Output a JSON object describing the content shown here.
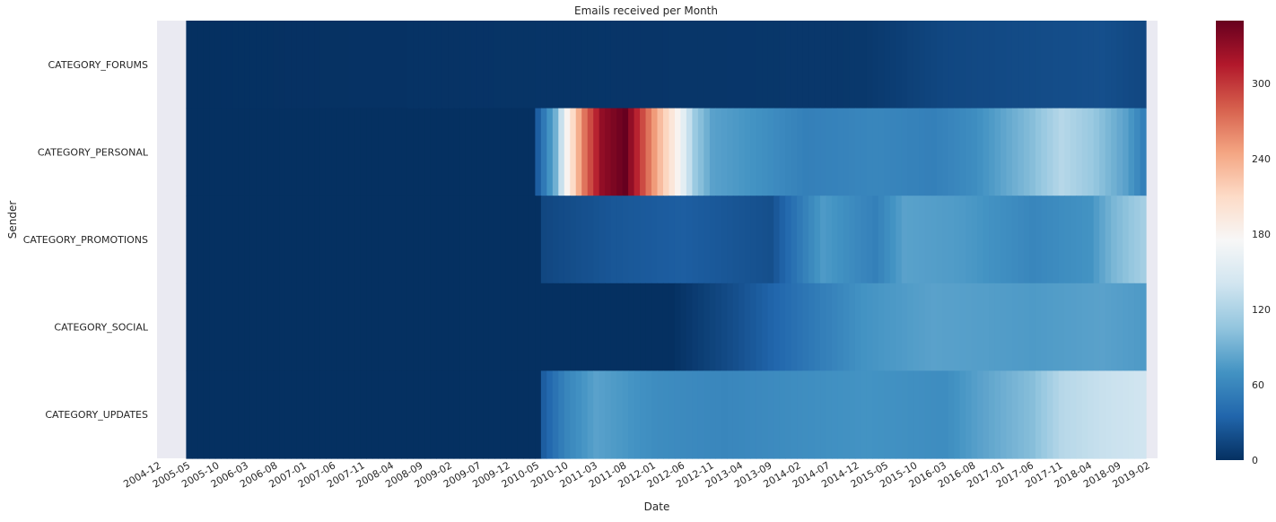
{
  "chart_data": {
    "type": "heatmap",
    "title": "Emails received per Month",
    "xlabel": "Date",
    "ylabel": "Sender",
    "rows": [
      "CATEGORY_FORUMS",
      "CATEGORY_PERSONAL",
      "CATEGORY_PROMOTIONS",
      "CATEGORY_SOCIAL",
      "CATEGORY_UPDATES"
    ],
    "x_tick_labels": [
      "2004-12",
      "2005-05",
      "2005-10",
      "2006-03",
      "2006-08",
      "2007-01",
      "2007-06",
      "2007-11",
      "2008-04",
      "2008-09",
      "2009-02",
      "2009-07",
      "2009-12",
      "2010-05",
      "2010-10",
      "2011-03",
      "2011-08",
      "2012-01",
      "2012-06",
      "2012-11",
      "2013-04",
      "2013-09",
      "2014-02",
      "2014-07",
      "2014-12",
      "2015-05",
      "2015-10",
      "2016-03",
      "2016-08",
      "2017-01",
      "2017-06",
      "2017-11",
      "2018-04",
      "2018-09",
      "2019-02"
    ],
    "x_start": "2004-12",
    "x_end": "2019-02",
    "empty_months_start": [
      "2004-12",
      "2005-01",
      "2005-02",
      "2005-03",
      "2005-04"
    ],
    "empty_months_end": [
      "2019-02",
      "2019-03"
    ],
    "colormap": "RdBu_r",
    "vmin": 0,
    "vmax": 350,
    "colorbar_ticks": [
      0,
      60,
      120,
      180,
      240,
      300
    ],
    "series_keypoints": {
      "CATEGORY_FORUMS": [
        [
          "2005-05",
          0
        ],
        [
          "2015-01",
          5
        ],
        [
          "2016-03",
          15
        ],
        [
          "2018-06",
          20
        ],
        [
          "2019-01",
          15
        ]
      ],
      "CATEGORY_PERSONAL": [
        [
          "2005-05",
          0
        ],
        [
          "2010-04",
          0
        ],
        [
          "2010-05",
          30
        ],
        [
          "2010-08",
          90
        ],
        [
          "2010-10",
          180
        ],
        [
          "2011-01",
          270
        ],
        [
          "2011-04",
          330
        ],
        [
          "2011-08",
          350
        ],
        [
          "2011-11",
          290
        ],
        [
          "2012-02",
          230
        ],
        [
          "2012-05",
          180
        ],
        [
          "2012-08",
          110
        ],
        [
          "2012-11",
          80
        ],
        [
          "2013-06",
          70
        ],
        [
          "2014-03",
          55
        ],
        [
          "2015-03",
          60
        ],
        [
          "2016-01",
          55
        ],
        [
          "2016-08",
          65
        ],
        [
          "2017-06",
          100
        ],
        [
          "2017-11",
          125
        ],
        [
          "2018-04",
          110
        ],
        [
          "2018-10",
          80
        ],
        [
          "2019-01",
          55
        ]
      ],
      "CATEGORY_PROMOTIONS": [
        [
          "2005-05",
          0
        ],
        [
          "2010-05",
          0
        ],
        [
          "2010-06",
          15
        ],
        [
          "2011-06",
          25
        ],
        [
          "2012-06",
          30
        ],
        [
          "2013-09",
          20
        ],
        [
          "2014-06",
          75
        ],
        [
          "2015-03",
          55
        ],
        [
          "2015-08",
          80
        ],
        [
          "2016-06",
          75
        ],
        [
          "2017-06",
          60
        ],
        [
          "2018-04",
          70
        ],
        [
          "2018-08",
          95
        ],
        [
          "2019-01",
          115
        ]
      ],
      "CATEGORY_SOCIAL": [
        [
          "2005-05",
          0
        ],
        [
          "2010-05",
          0
        ],
        [
          "2012-04",
          0
        ],
        [
          "2013-03",
          20
        ],
        [
          "2014-02",
          45
        ],
        [
          "2015-01",
          70
        ],
        [
          "2016-01",
          80
        ],
        [
          "2017-06",
          75
        ],
        [
          "2018-06",
          80
        ],
        [
          "2019-01",
          75
        ]
      ],
      "CATEGORY_UPDATES": [
        [
          "2005-05",
          0
        ],
        [
          "2010-05",
          0
        ],
        [
          "2010-06",
          30
        ],
        [
          "2010-10",
          60
        ],
        [
          "2011-03",
          80
        ],
        [
          "2012-01",
          65
        ],
        [
          "2013-01",
          60
        ],
        [
          "2014-01",
          65
        ],
        [
          "2015-01",
          70
        ],
        [
          "2016-03",
          65
        ],
        [
          "2016-09",
          80
        ],
        [
          "2017-06",
          100
        ],
        [
          "2017-11",
          125
        ],
        [
          "2018-06",
          135
        ],
        [
          "2019-01",
          140
        ]
      ]
    }
  }
}
